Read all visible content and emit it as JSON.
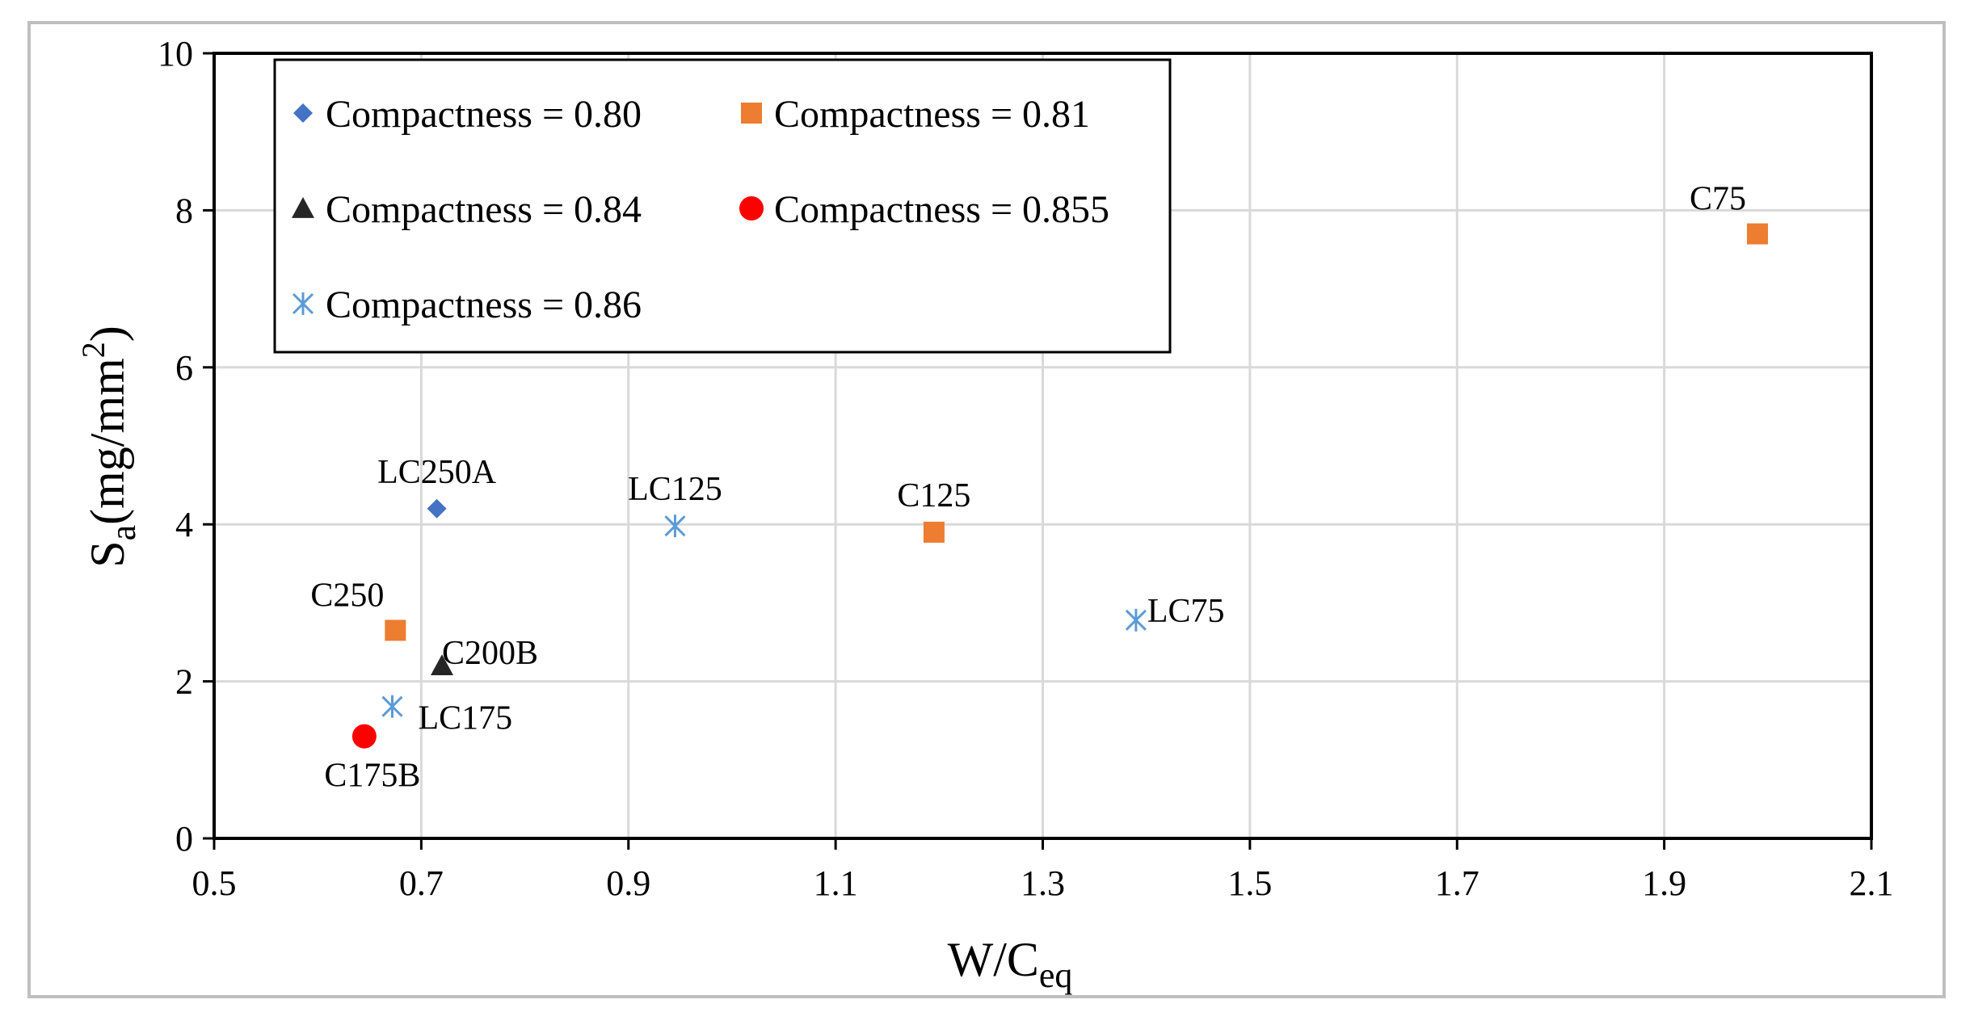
{
  "chart_data": {
    "type": "scatter",
    "title": "",
    "xlabel": "W/C",
    "xlabel_sub": "eq",
    "ylabel": "S",
    "ylabel_sub": "a",
    "ylabel_rest": "(mg/mm",
    "ylabel_sup": "2",
    "ylabel_end": ")",
    "xlim": [
      0.5,
      2.1
    ],
    "ylim": [
      0,
      10
    ],
    "xticks": [
      0.5,
      0.7,
      0.9,
      1.1,
      1.3,
      1.5,
      1.7,
      1.9,
      2.1
    ],
    "yticks": [
      0,
      2,
      4,
      6,
      8,
      10
    ],
    "xtick_labels": [
      "0.5",
      "0.7",
      "0.9",
      "1.1",
      "1.3",
      "1.5",
      "1.7",
      "1.9",
      "2.1"
    ],
    "ytick_labels": [
      "0",
      "2",
      "4",
      "6",
      "8",
      "10"
    ],
    "grid": true,
    "legend_position": "top-left",
    "series": [
      {
        "name": "Compactness = 0.80",
        "marker": "diamond",
        "color": "#4472c4",
        "points": [
          {
            "x": 0.715,
            "y": 4.2,
            "label": "LC250A",
            "label_pos": "above"
          }
        ]
      },
      {
        "name": "Compactness = 0.81",
        "marker": "square",
        "color": "#ed7d31",
        "points": [
          {
            "x": 0.675,
            "y": 2.65,
            "label": "C250",
            "label_pos": "above-left"
          },
          {
            "x": 1.195,
            "y": 3.9,
            "label": "C125",
            "label_pos": "above"
          },
          {
            "x": 1.99,
            "y": 7.7,
            "label": "C75",
            "label_pos": "above-left"
          }
        ]
      },
      {
        "name": "Compactness = 0.84",
        "marker": "triangle",
        "color": "#262626",
        "points": [
          {
            "x": 0.72,
            "y": 2.2,
            "label": "C200B",
            "label_pos": "right-up"
          }
        ]
      },
      {
        "name": "Compactness = 0.855",
        "marker": "circle",
        "color": "#ff0000",
        "points": [
          {
            "x": 0.645,
            "y": 1.3,
            "label": "C175B",
            "label_pos": "below"
          }
        ]
      },
      {
        "name": "Compactness = 0.86",
        "marker": "asterisk",
        "color": "#5b9bd5",
        "points": [
          {
            "x": 0.672,
            "y": 1.68,
            "label": "LC175",
            "label_pos": "right-down"
          },
          {
            "x": 0.945,
            "y": 3.98,
            "label": "LC125",
            "label_pos": "above"
          },
          {
            "x": 1.39,
            "y": 2.78,
            "label": "LC75",
            "label_pos": "right"
          }
        ]
      }
    ]
  }
}
